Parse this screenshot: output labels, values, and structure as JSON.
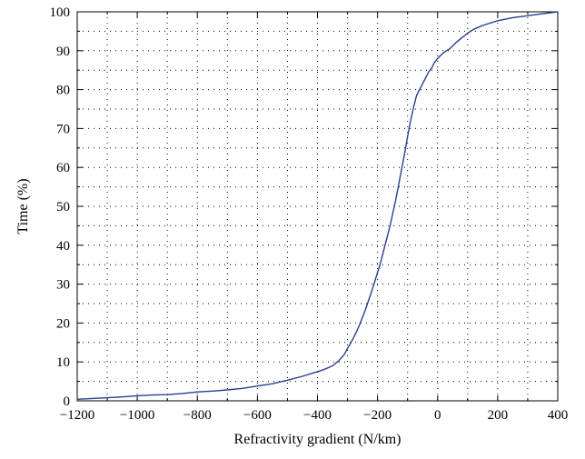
{
  "chart_data": {
    "type": "line",
    "title": "",
    "xlabel": "Refractivity gradient (N/km)",
    "ylabel": "Time (%)",
    "xlim": [
      -1200,
      400
    ],
    "ylim": [
      0,
      100
    ],
    "x_ticks": [
      -1200,
      -1000,
      -800,
      -600,
      -400,
      -200,
      0,
      200,
      400
    ],
    "x_tick_labels": [
      "−1200",
      "−1000",
      "−800",
      "−600",
      "−400",
      "−200",
      "0",
      "200",
      "400"
    ],
    "y_ticks": [
      0,
      10,
      20,
      30,
      40,
      50,
      60,
      70,
      80,
      90,
      100
    ],
    "y_tick_labels": [
      "0",
      "10",
      "20",
      "30",
      "40",
      "50",
      "60",
      "70",
      "80",
      "90",
      "100"
    ],
    "grid": true,
    "minor_grid": true,
    "series_color": "#2b3f8f",
    "series": [
      {
        "x": [
          -1200,
          -1150,
          -1100,
          -1050,
          -1000,
          -950,
          -900,
          -850,
          -800,
          -750,
          -700,
          -650,
          -600,
          -550,
          -500,
          -450,
          -400,
          -380,
          -350,
          -330,
          -310,
          -300,
          -290,
          -280,
          -270,
          -260,
          -250,
          -240,
          -230,
          -220,
          -210,
          -200,
          -190,
          -180,
          -170,
          -160,
          -150,
          -140,
          -130,
          -120,
          -110,
          -100,
          -90,
          -80,
          -70,
          -60,
          -50,
          -40,
          -30,
          -20,
          -10,
          0,
          10,
          20,
          40,
          60,
          80,
          100,
          120,
          150,
          200,
          250,
          300,
          350,
          400
        ],
        "y": [
          0.4,
          0.6,
          0.8,
          1.0,
          1.3,
          1.5,
          1.6,
          1.9,
          2.3,
          2.5,
          2.8,
          3.2,
          3.8,
          4.4,
          5.3,
          6.3,
          7.5,
          8.0,
          9.0,
          10.2,
          12.0,
          13.5,
          14.8,
          16.2,
          17.8,
          19.5,
          21.5,
          23.5,
          25.8,
          28.0,
          30.5,
          33.0,
          35.5,
          38.5,
          41.5,
          44.5,
          48.0,
          51.5,
          55.5,
          59.5,
          63.5,
          68.0,
          72.0,
          75.5,
          78.5,
          80.0,
          81.5,
          83.0,
          84.5,
          85.5,
          87.0,
          88.0,
          88.8,
          89.5,
          90.5,
          92.0,
          93.3,
          94.5,
          95.5,
          96.5,
          97.7,
          98.5,
          99.0,
          99.5,
          100.0
        ]
      }
    ]
  }
}
